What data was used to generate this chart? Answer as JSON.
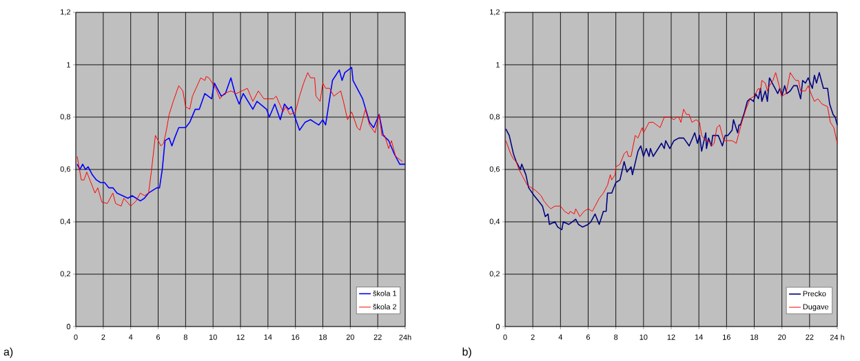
{
  "chart_data": [
    {
      "type": "line",
      "annotations": [
        "a)"
      ],
      "xlim": [
        0,
        24
      ],
      "ylim": [
        0,
        1.2
      ],
      "grid": true,
      "legend": "bottom right",
      "line_style": "solid",
      "xticks": [
        0,
        2,
        4,
        6,
        8,
        10,
        12,
        14,
        16,
        18,
        20,
        22,
        {
          "value": 24,
          "label": "24h"
        }
      ],
      "yticks": [
        0,
        {
          "value": 0.2,
          "label": "0,2"
        },
        {
          "value": 0.4,
          "label": "0,4"
        },
        {
          "value": 0.6,
          "label": "0,6"
        },
        {
          "value": 0.8,
          "label": "0,8"
        },
        {
          "value": 1,
          "label": "1"
        },
        {
          "value": 1.2,
          "label": "1,2"
        }
      ],
      "series": [
        {
          "name": "škola  1",
          "color": "#0000ff",
          "x": [
            0.1,
            0.3,
            0.5,
            0.7,
            0.9,
            1.2,
            1.5,
            1.8,
            2.1,
            2.4,
            2.7,
            3.0,
            3.4,
            3.8,
            4.1,
            4.4,
            4.7,
            5.0,
            5.3,
            5.6,
            5.9,
            6.1,
            6.3,
            6.5,
            6.8,
            7.0,
            7.2,
            7.5,
            8.0,
            8.3,
            8.7,
            9.0,
            9.4,
            9.9,
            10.1,
            10.6,
            10.9,
            11.3,
            11.6,
            11.9,
            12.2,
            12.9,
            13.2,
            13.9,
            14.1,
            14.5,
            14.9,
            15.2,
            15.5,
            15.7,
            16.3,
            16.7,
            17.1,
            17.4,
            17.7,
            18.0,
            18.2,
            18.7,
            19.2,
            19.4,
            19.6,
            20.1,
            20.2,
            20.9,
            21.4,
            21.7,
            22.1,
            22.4,
            22.8,
            23.2,
            23.6,
            24.0
          ],
          "values": [
            0.62,
            0.6,
            0.62,
            0.6,
            0.61,
            0.58,
            0.56,
            0.55,
            0.55,
            0.53,
            0.53,
            0.51,
            0.5,
            0.49,
            0.5,
            0.49,
            0.48,
            0.49,
            0.51,
            0.52,
            0.53,
            0.53,
            0.6,
            0.71,
            0.72,
            0.69,
            0.72,
            0.76,
            0.76,
            0.78,
            0.83,
            0.83,
            0.89,
            0.87,
            0.93,
            0.88,
            0.89,
            0.95,
            0.89,
            0.85,
            0.89,
            0.83,
            0.86,
            0.83,
            0.8,
            0.85,
            0.79,
            0.85,
            0.83,
            0.84,
            0.75,
            0.78,
            0.79,
            0.78,
            0.77,
            0.79,
            0.77,
            0.94,
            0.98,
            0.94,
            0.97,
            0.99,
            0.94,
            0.87,
            0.78,
            0.76,
            0.81,
            0.73,
            0.71,
            0.66,
            0.62,
            0.62
          ]
        },
        {
          "name": "škola 2",
          "color": "#ff0000",
          "x": [
            0.1,
            0.4,
            0.6,
            0.8,
            1.1,
            1.4,
            1.6,
            1.9,
            2.3,
            2.7,
            2.9,
            3.3,
            3.5,
            4.0,
            4.4,
            4.7,
            5.0,
            5.3,
            5.5,
            5.8,
            6.2,
            6.4,
            6.6,
            6.8,
            7.1,
            7.5,
            7.8,
            8.0,
            8.3,
            8.5,
            9.1,
            9.4,
            9.5,
            9.7,
            10.2,
            10.5,
            10.8,
            11.3,
            11.7,
            12.1,
            12.5,
            12.9,
            13.3,
            13.7,
            14.4,
            14.6,
            15.1,
            15.3,
            15.6,
            16.0,
            16.3,
            16.6,
            16.9,
            17.1,
            17.4,
            17.5,
            17.8,
            18.0,
            18.2,
            18.5,
            18.8,
            19.3,
            19.5,
            19.8,
            20.1,
            20.5,
            20.7,
            21.1,
            21.4,
            21.8,
            22.1,
            22.3,
            22.5,
            22.8,
            23.0,
            23.3,
            23.8
          ],
          "values": [
            0.65,
            0.56,
            0.56,
            0.59,
            0.55,
            0.51,
            0.53,
            0.475,
            0.47,
            0.51,
            0.47,
            0.46,
            0.49,
            0.46,
            0.48,
            0.51,
            0.5,
            0.51,
            0.59,
            0.73,
            0.69,
            0.7,
            0.75,
            0.81,
            0.86,
            0.92,
            0.9,
            0.84,
            0.83,
            0.88,
            0.95,
            0.94,
            0.955,
            0.95,
            0.91,
            0.87,
            0.89,
            0.9,
            0.89,
            0.9,
            0.91,
            0.86,
            0.9,
            0.87,
            0.87,
            0.88,
            0.82,
            0.84,
            0.81,
            0.82,
            0.88,
            0.93,
            0.97,
            0.95,
            0.95,
            0.88,
            0.86,
            0.93,
            0.91,
            0.91,
            0.88,
            0.9,
            0.86,
            0.79,
            0.82,
            0.76,
            0.75,
            0.83,
            0.77,
            0.74,
            0.81,
            0.73,
            0.73,
            0.68,
            0.71,
            0.65,
            0.63
          ]
        }
      ]
    },
    {
      "type": "line",
      "annotations": [
        "b)"
      ],
      "xlim": [
        0,
        24
      ],
      "ylim": [
        0,
        1.2
      ],
      "grid": true,
      "legend": "bottom right",
      "line_style": "solid",
      "xticks": [
        0,
        2,
        4,
        6,
        8,
        10,
        12,
        14,
        16,
        18,
        20,
        22,
        {
          "value": 24,
          "label": "24 h"
        }
      ],
      "yticks": [
        0,
        {
          "value": 0.2,
          "label": "0,2"
        },
        {
          "value": 0.4,
          "label": "0,4"
        },
        {
          "value": 0.6,
          "label": "0,6"
        },
        {
          "value": 0.8,
          "label": "0,8"
        },
        {
          "value": 1,
          "label": "1"
        },
        {
          "value": 1.2,
          "label": "1,2"
        }
      ],
      "series": [
        {
          "name": "Precko",
          "color": "#000080",
          "x": [
            0.05,
            0.3,
            0.6,
            0.8,
            1.1,
            1.2,
            1.5,
            1.7,
            2.1,
            2.4,
            2.7,
            2.9,
            3.1,
            3.2,
            3.6,
            3.8,
            4.1,
            4.2,
            4.6,
            5.1,
            5.3,
            5.6,
            6.0,
            6.2,
            6.5,
            6.8,
            7.1,
            7.3,
            7.4,
            7.7,
            8.0,
            8.3,
            8.6,
            8.8,
            9.1,
            9.2,
            9.6,
            9.8,
            10.0,
            10.2,
            10.4,
            10.5,
            10.7,
            11.3,
            11.5,
            11.6,
            11.9,
            12.2,
            12.55,
            12.9,
            13.3,
            13.7,
            13.9,
            14.05,
            14.2,
            14.5,
            14.55,
            14.7,
            14.9,
            15.0,
            15.4,
            15.7,
            15.9,
            16.1,
            16.4,
            16.5,
            16.8,
            16.9,
            17.0,
            17.3,
            17.5,
            17.7,
            17.95,
            18.1,
            18.3,
            18.45,
            18.55,
            18.8,
            18.95,
            19.1,
            19.3,
            19.5,
            19.7,
            19.85,
            20.0,
            20.2,
            20.35,
            20.6,
            20.85,
            21.1,
            21.35,
            21.5,
            21.7,
            21.9,
            22.2,
            22.35,
            22.5,
            22.7,
            23.0,
            23.3,
            23.45,
            23.7,
            23.85,
            24.0
          ],
          "values": [
            0.755,
            0.73,
            0.66,
            0.63,
            0.6,
            0.62,
            0.58,
            0.53,
            0.5,
            0.48,
            0.46,
            0.42,
            0.43,
            0.39,
            0.4,
            0.38,
            0.37,
            0.4,
            0.39,
            0.41,
            0.39,
            0.38,
            0.39,
            0.4,
            0.43,
            0.39,
            0.44,
            0.44,
            0.51,
            0.51,
            0.55,
            0.56,
            0.63,
            0.59,
            0.61,
            0.58,
            0.67,
            0.69,
            0.65,
            0.68,
            0.65,
            0.68,
            0.65,
            0.7,
            0.68,
            0.71,
            0.68,
            0.71,
            0.72,
            0.72,
            0.69,
            0.74,
            0.7,
            0.73,
            0.67,
            0.74,
            0.68,
            0.72,
            0.69,
            0.73,
            0.73,
            0.69,
            0.73,
            0.73,
            0.75,
            0.79,
            0.74,
            0.77,
            0.77,
            0.82,
            0.86,
            0.87,
            0.86,
            0.89,
            0.87,
            0.91,
            0.86,
            0.9,
            0.86,
            0.95,
            0.93,
            0.91,
            0.89,
            0.91,
            0.88,
            0.92,
            0.89,
            0.9,
            0.92,
            0.92,
            0.87,
            0.94,
            0.93,
            0.95,
            0.91,
            0.96,
            0.93,
            0.97,
            0.91,
            0.91,
            0.85,
            0.81,
            0.8,
            0.77
          ]
        },
        {
          "name": "Dugave",
          "color": "#ff0000",
          "x": [
            0.05,
            0.4,
            0.6,
            0.8,
            1.0,
            1.3,
            1.6,
            1.9,
            2.2,
            2.6,
            2.8,
            3.1,
            3.3,
            3.6,
            4.0,
            4.3,
            4.6,
            4.7,
            5.0,
            5.1,
            5.4,
            5.7,
            6.0,
            6.3,
            6.5,
            6.8,
            7.1,
            7.4,
            7.6,
            7.7,
            7.95,
            8.0,
            8.3,
            8.6,
            8.8,
            8.9,
            9.1,
            9.4,
            9.6,
            9.9,
            10.0,
            10.4,
            10.7,
            11.2,
            11.5,
            11.9,
            12.2,
            12.4,
            12.55,
            12.7,
            12.9,
            13.1,
            13.3,
            13.5,
            13.8,
            14.05,
            14.2,
            14.5,
            14.7,
            14.95,
            15.1,
            15.3,
            15.5,
            15.8,
            16.1,
            16.4,
            16.7,
            17.1,
            17.4,
            17.7,
            18.0,
            18.3,
            18.45,
            18.55,
            18.8,
            18.95,
            19.1,
            19.35,
            19.55,
            19.8,
            20.0,
            20.3,
            20.6,
            20.85,
            21.0,
            21.2,
            21.35,
            21.7,
            21.9,
            22.1,
            22.35,
            22.6,
            22.9,
            23.3,
            23.5,
            23.75,
            24.0
          ],
          "values": [
            0.71,
            0.66,
            0.64,
            0.63,
            0.6,
            0.57,
            0.54,
            0.53,
            0.52,
            0.5,
            0.48,
            0.46,
            0.45,
            0.46,
            0.46,
            0.44,
            0.43,
            0.44,
            0.43,
            0.45,
            0.42,
            0.44,
            0.45,
            0.44,
            0.46,
            0.49,
            0.51,
            0.54,
            0.58,
            0.56,
            0.58,
            0.61,
            0.62,
            0.66,
            0.67,
            0.65,
            0.65,
            0.73,
            0.72,
            0.76,
            0.74,
            0.78,
            0.78,
            0.76,
            0.8,
            0.8,
            0.79,
            0.8,
            0.8,
            0.78,
            0.83,
            0.81,
            0.81,
            0.78,
            0.79,
            0.78,
            0.73,
            0.71,
            0.71,
            0.69,
            0.7,
            0.76,
            0.77,
            0.71,
            0.71,
            0.71,
            0.7,
            0.78,
            0.83,
            0.87,
            0.88,
            0.91,
            0.9,
            0.94,
            0.93,
            0.9,
            0.92,
            0.94,
            0.97,
            0.92,
            0.88,
            0.89,
            0.97,
            0.95,
            0.94,
            0.94,
            0.9,
            0.9,
            0.92,
            0.89,
            0.86,
            0.87,
            0.85,
            0.84,
            0.78,
            0.76,
            0.7
          ]
        }
      ]
    }
  ]
}
